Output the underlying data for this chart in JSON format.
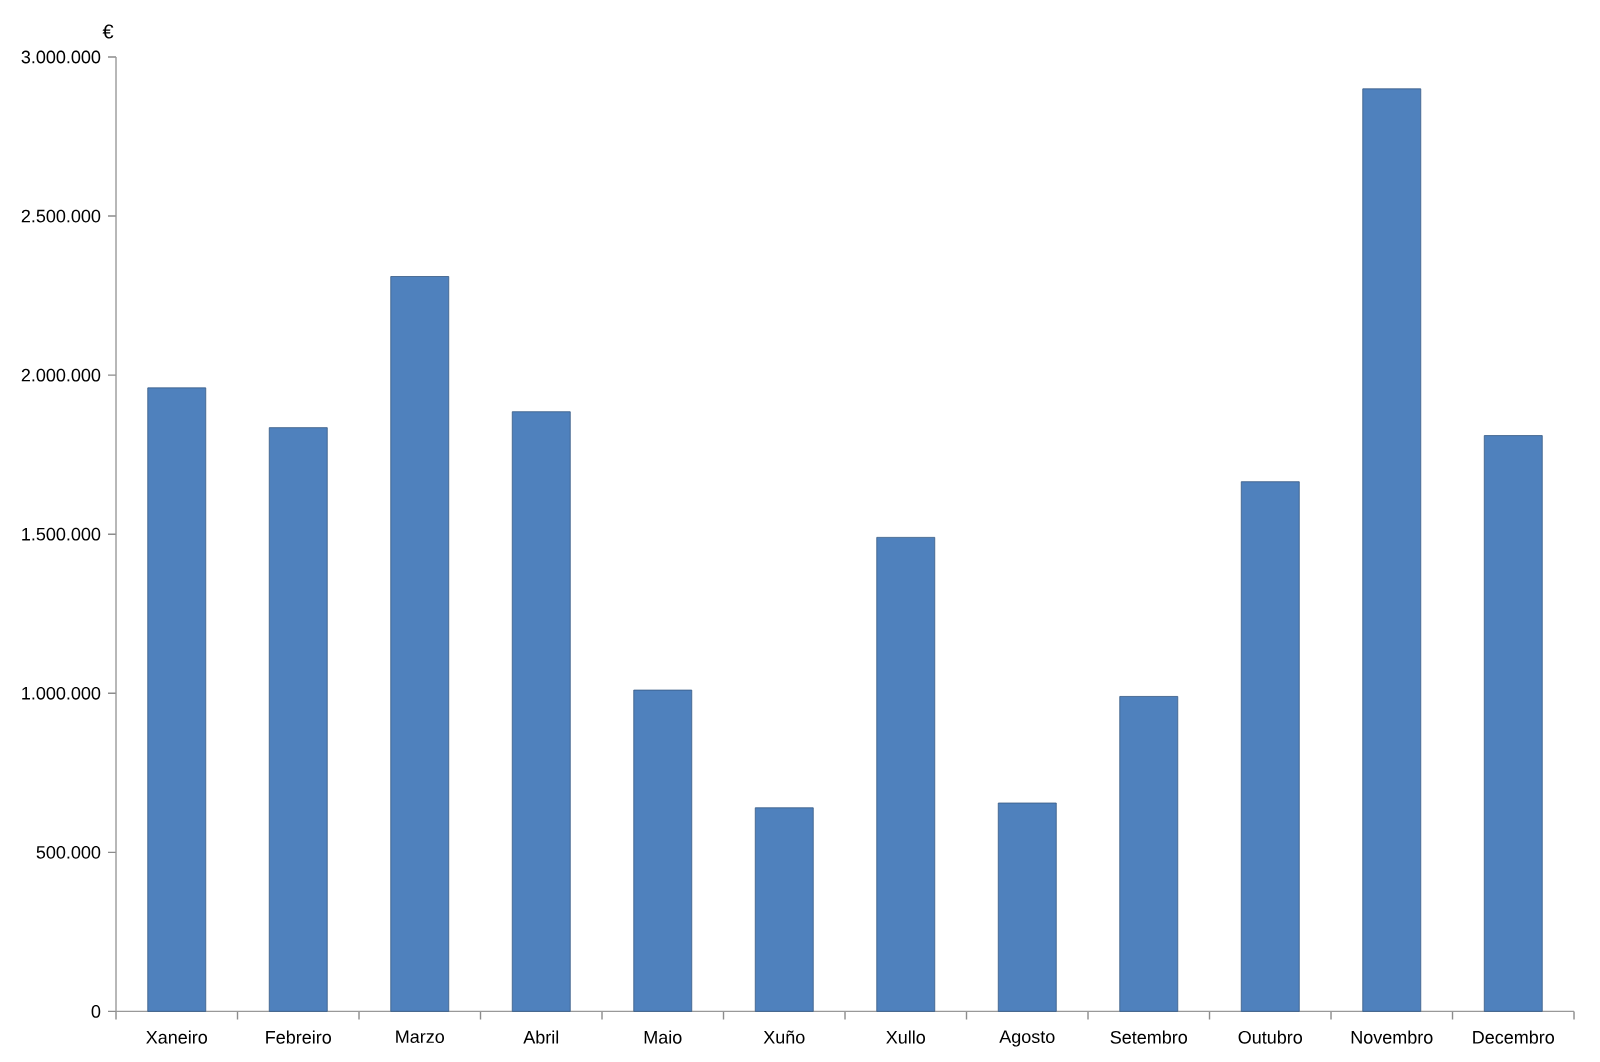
{
  "chart_data": {
    "type": "bar",
    "ylabel": "€",
    "categories": [
      "Xaneiro",
      "Febreiro",
      "Marzo",
      "Abril",
      "Maio",
      "Xuño",
      "Xullo",
      "Agosto",
      "Setembro",
      "Outubro",
      "Novembro",
      "Decembro"
    ],
    "values": [
      1960000,
      1835000,
      2310000,
      1885000,
      1010000,
      640000,
      1490000,
      655000,
      990000,
      1665000,
      2900000,
      1810000
    ],
    "color": "#4f81bd",
    "ylim": [
      0,
      3000000
    ],
    "yticks": [
      0,
      {
        "value": 500000,
        "label": "500.000"
      },
      {
        "value": 1000000,
        "label": "1.000.000"
      },
      {
        "value": 1500000,
        "label": "1.500.000"
      },
      {
        "value": 2000000,
        "label": "2.000.000"
      },
      {
        "value": 2500000,
        "label": "2.500.000"
      },
      {
        "value": 3000000,
        "label": "3.000.000"
      }
    ]
  }
}
